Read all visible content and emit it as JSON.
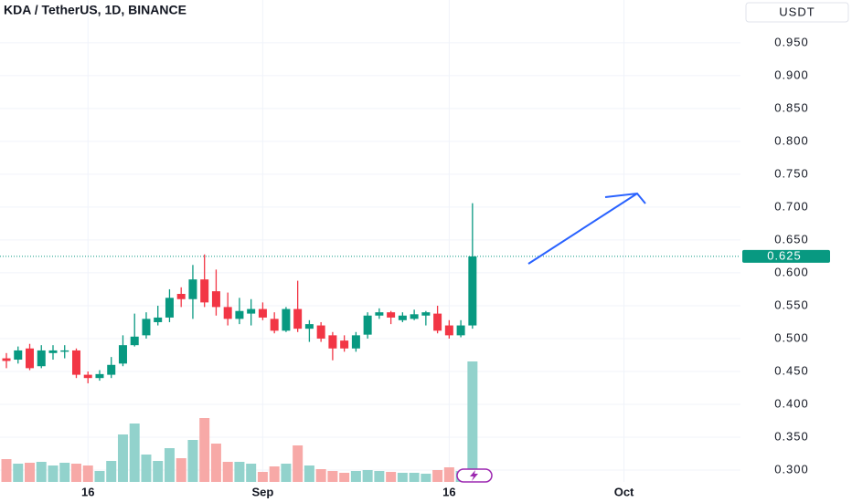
{
  "chart_data": {
    "type": "candlestick",
    "title": "KDA / TetherUS, 1D, BINANCE",
    "currency": "USDT",
    "x": [
      0,
      1,
      2,
      3,
      4,
      5,
      6,
      7,
      8,
      9,
      10,
      11,
      12,
      13,
      14,
      15,
      16,
      17,
      18,
      19,
      20,
      21,
      22,
      23,
      24,
      25,
      26,
      27,
      28,
      29,
      30,
      31,
      32,
      33,
      34,
      35,
      36,
      37,
      38,
      39,
      40
    ],
    "open": [
      0.47,
      0.468,
      0.485,
      0.458,
      0.478,
      0.48,
      0.482,
      0.445,
      0.44,
      0.445,
      0.462,
      0.49,
      0.505,
      0.525,
      0.532,
      0.568,
      0.56,
      0.59,
      0.572,
      0.548,
      0.53,
      0.538,
      0.545,
      0.53,
      0.512,
      0.545,
      0.515,
      0.52,
      0.505,
      0.497,
      0.485,
      0.506,
      0.535,
      0.54,
      0.528,
      0.53,
      0.535,
      0.538,
      0.52,
      0.505,
      0.52
    ],
    "high": [
      0.478,
      0.488,
      0.492,
      0.49,
      0.49,
      0.49,
      0.485,
      0.45,
      0.452,
      0.472,
      0.505,
      0.538,
      0.54,
      0.55,
      0.575,
      0.578,
      0.612,
      0.628,
      0.605,
      0.57,
      0.562,
      0.56,
      0.555,
      0.54,
      0.548,
      0.588,
      0.528,
      0.525,
      0.51,
      0.505,
      0.51,
      0.54,
      0.546,
      0.542,
      0.54,
      0.544,
      0.542,
      0.55,
      0.528,
      0.528,
      0.706
    ],
    "low": [
      0.455,
      0.462,
      0.452,
      0.455,
      0.468,
      0.47,
      0.44,
      0.432,
      0.436,
      0.44,
      0.458,
      0.488,
      0.5,
      0.52,
      0.525,
      0.548,
      0.53,
      0.548,
      0.535,
      0.52,
      0.522,
      0.52,
      0.528,
      0.508,
      0.51,
      0.51,
      0.495,
      0.495,
      0.467,
      0.48,
      0.48,
      0.5,
      0.53,
      0.522,
      0.525,
      0.528,
      0.52,
      0.508,
      0.5,
      0.502,
      0.515
    ],
    "close": [
      0.466,
      0.482,
      0.455,
      0.482,
      0.482,
      0.482,
      0.445,
      0.44,
      0.446,
      0.46,
      0.49,
      0.503,
      0.53,
      0.532,
      0.562,
      0.56,
      0.59,
      0.555,
      0.548,
      0.53,
      0.542,
      0.545,
      0.532,
      0.512,
      0.545,
      0.515,
      0.522,
      0.5,
      0.485,
      0.485,
      0.505,
      0.535,
      0.54,
      0.532,
      0.535,
      0.537,
      0.54,
      0.512,
      0.505,
      0.52,
      0.625
    ],
    "volume": [
      25,
      20,
      21,
      22,
      18,
      21,
      20,
      18,
      12,
      23,
      52,
      64,
      30,
      23,
      37,
      26,
      46,
      70,
      42,
      22,
      22,
      20,
      11,
      17,
      20,
      40,
      18,
      14,
      12,
      10,
      12,
      13,
      12,
      11,
      10,
      10,
      9,
      13,
      16,
      12,
      132
    ],
    "up_color": "#089981",
    "down_color": "#f23645",
    "volume_up_color": "#92d2cc",
    "volume_down_color": "#f7a9a7",
    "last_price": {
      "value": 0.625,
      "label": "0.625"
    },
    "xlim": [
      -0.55,
      63
    ],
    "xticks": [
      {
        "value": 7,
        "label": "16"
      },
      {
        "value": 22,
        "label": "Sep"
      },
      {
        "value": 38,
        "label": "16"
      },
      {
        "value": 53,
        "label": "Oct"
      }
    ],
    "ylim": [
      0.282,
      1.015
    ],
    "yticks": [
      {
        "value": 0.3,
        "label": "0.300"
      },
      {
        "value": 0.35,
        "label": "0.350"
      },
      {
        "value": 0.4,
        "label": "0.400"
      },
      {
        "value": 0.45,
        "label": "0.450"
      },
      {
        "value": 0.5,
        "label": "0.500"
      },
      {
        "value": 0.55,
        "label": "0.550"
      },
      {
        "value": 0.6,
        "label": "0.600"
      },
      {
        "value": 0.65,
        "label": "0.650"
      },
      {
        "value": 0.7,
        "label": "0.700"
      },
      {
        "value": 0.75,
        "label": "0.750"
      },
      {
        "value": 0.8,
        "label": "0.800"
      },
      {
        "value": 0.85,
        "label": "0.850"
      },
      {
        "value": 0.9,
        "label": "0.900"
      },
      {
        "value": 0.95,
        "label": "0.950"
      }
    ],
    "grid": true
  }
}
